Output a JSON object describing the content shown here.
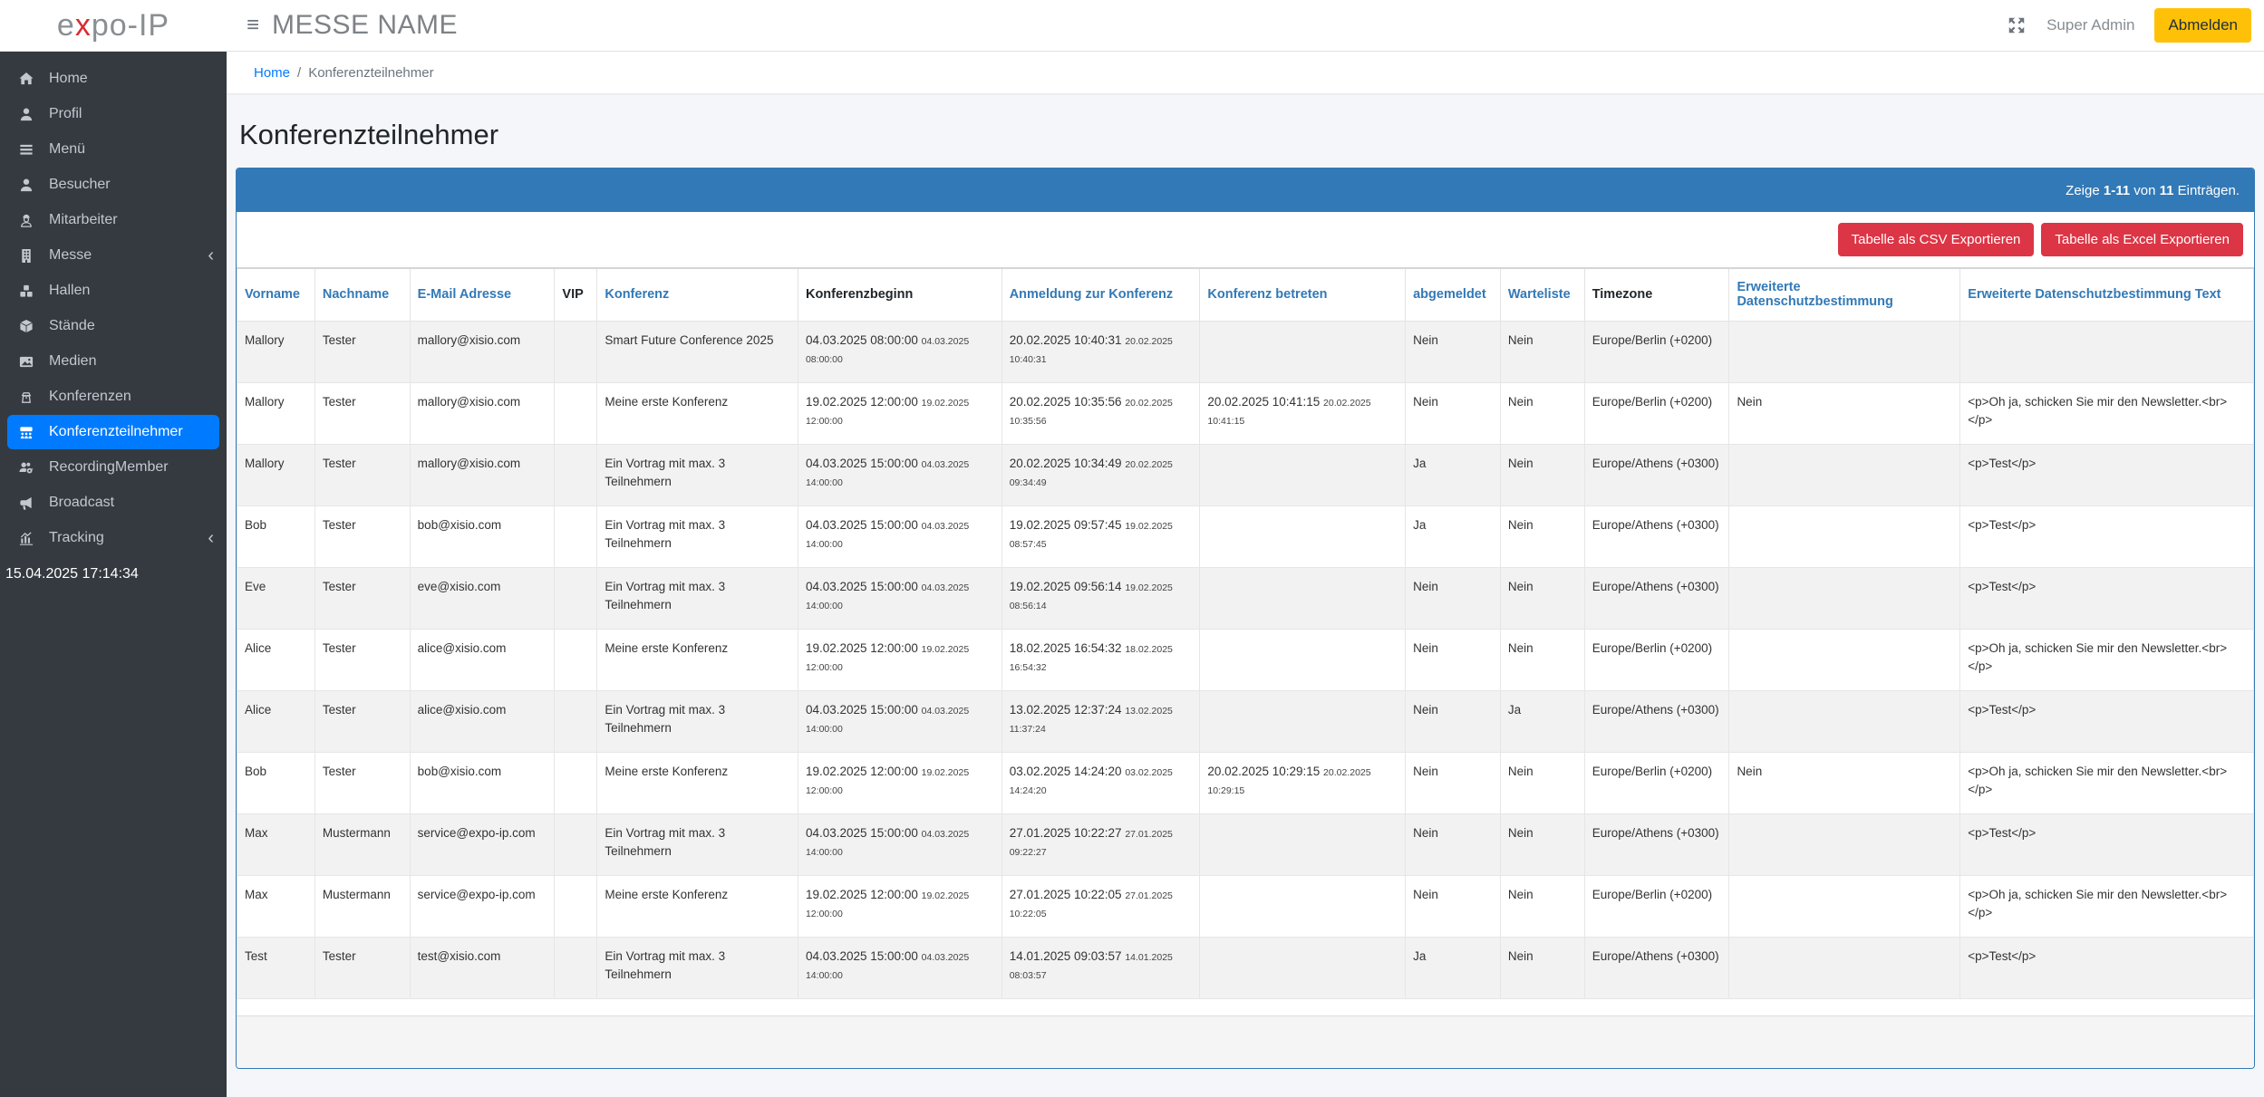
{
  "topbar": {
    "logo": {
      "pre": "e",
      "x": "x",
      "post": "po-IP"
    },
    "hamburger": "≡",
    "messe_name": "MESSE NAME",
    "username": "Super Admin",
    "logout_label": "Abmelden"
  },
  "sidebar": {
    "items": [
      {
        "label": "Home",
        "icon": "home-icon",
        "active": false,
        "chevron": false
      },
      {
        "label": "Profil",
        "icon": "user-icon",
        "active": false,
        "chevron": false
      },
      {
        "label": "Menü",
        "icon": "menu-icon",
        "active": false,
        "chevron": false
      },
      {
        "label": "Besucher",
        "icon": "visitor-icon",
        "active": false,
        "chevron": false
      },
      {
        "label": "Mitarbeiter",
        "icon": "worker-icon",
        "active": false,
        "chevron": false
      },
      {
        "label": "Messe",
        "icon": "building-icon",
        "active": false,
        "chevron": true
      },
      {
        "label": "Hallen",
        "icon": "cubes-icon",
        "active": false,
        "chevron": false
      },
      {
        "label": "Stände",
        "icon": "box-icon",
        "active": false,
        "chevron": false
      },
      {
        "label": "Medien",
        "icon": "image-icon",
        "active": false,
        "chevron": false
      },
      {
        "label": "Konferenzen",
        "icon": "podium-icon",
        "active": false,
        "chevron": false
      },
      {
        "label": "Konferenzteilnehmer",
        "icon": "audience-icon",
        "active": true,
        "chevron": false
      },
      {
        "label": "RecordingMember",
        "icon": "users-gear-icon",
        "active": false,
        "chevron": false
      },
      {
        "label": "Broadcast",
        "icon": "megaphone-icon",
        "active": false,
        "chevron": false
      },
      {
        "label": "Tracking",
        "icon": "chart-icon",
        "active": false,
        "chevron": true
      }
    ],
    "timestamp": "15.04.2025 17:14:34"
  },
  "breadcrumb": {
    "home": "Home",
    "separator": "/",
    "current": "Konferenzteilnehmer"
  },
  "page_title": "Konferenzteilnehmer",
  "summary": {
    "prefix": "Zeige ",
    "range": "1-11",
    "middle": " von ",
    "total": "11",
    "suffix": " Einträgen."
  },
  "toolbar": {
    "export_csv_label": "Tabelle als CSV Exportieren",
    "export_excel_label": "Tabelle als Excel Exportieren"
  },
  "table": {
    "columns": [
      {
        "key": "vorname",
        "label": "Vorname",
        "sortable": true
      },
      {
        "key": "nachname",
        "label": "Nachname",
        "sortable": true
      },
      {
        "key": "email",
        "label": "E-Mail Adresse",
        "sortable": true
      },
      {
        "key": "vip",
        "label": "VIP",
        "sortable": false
      },
      {
        "key": "konferenz",
        "label": "Konferenz",
        "sortable": true
      },
      {
        "key": "beginn",
        "label": "Konferenzbeginn",
        "sortable": false
      },
      {
        "key": "anmeldung",
        "label": "Anmeldung zur Konferenz",
        "sortable": true
      },
      {
        "key": "betreten",
        "label": "Konferenz betreten",
        "sortable": true
      },
      {
        "key": "abgemeldet",
        "label": "abgemeldet",
        "sortable": true
      },
      {
        "key": "warteliste",
        "label": "Warteliste",
        "sortable": true
      },
      {
        "key": "timezone",
        "label": "Timezone",
        "sortable": false
      },
      {
        "key": "dsb",
        "label": "Erweiterte Datenschutzbestimmung",
        "sortable": true
      },
      {
        "key": "dsbtext",
        "label": "Erweiterte Datenschutzbestimmung Text",
        "sortable": true
      }
    ],
    "rows": [
      {
        "vorname": "Mallory",
        "nachname": "Tester",
        "email": "mallory@xisio.com",
        "vip": "",
        "konferenz": "Smart Future Conference 2025",
        "beginn_main": "04.03.2025 08:00:00",
        "beginn_small": "04.03.2025 08:00:00",
        "anmeldung_main": "20.02.2025 10:40:31",
        "anmeldung_small": "20.02.2025 10:40:31",
        "betreten_main": "",
        "betreten_small": "",
        "abgemeldet": "Nein",
        "warteliste": "Nein",
        "timezone": "Europe/Berlin (+0200)",
        "dsb": "",
        "dsbtext": ""
      },
      {
        "vorname": "Mallory",
        "nachname": "Tester",
        "email": "mallory@xisio.com",
        "vip": "",
        "konferenz": "Meine erste Konferenz",
        "beginn_main": "19.02.2025 12:00:00",
        "beginn_small": "19.02.2025 12:00:00",
        "anmeldung_main": "20.02.2025 10:35:56",
        "anmeldung_small": "20.02.2025 10:35:56",
        "betreten_main": "20.02.2025 10:41:15",
        "betreten_small": "20.02.2025 10:41:15",
        "abgemeldet": "Nein",
        "warteliste": "Nein",
        "timezone": "Europe/Berlin (+0200)",
        "dsb": "Nein",
        "dsbtext": "<p>Oh ja, schicken Sie mir den Newsletter.<br></p>"
      },
      {
        "vorname": "Mallory",
        "nachname": "Tester",
        "email": "mallory@xisio.com",
        "vip": "",
        "konferenz": "Ein Vortrag mit max. 3 Teilnehmern",
        "beginn_main": "04.03.2025 15:00:00",
        "beginn_small": "04.03.2025 14:00:00",
        "anmeldung_main": "20.02.2025 10:34:49",
        "anmeldung_small": "20.02.2025 09:34:49",
        "betreten_main": "",
        "betreten_small": "",
        "abgemeldet": "Ja",
        "warteliste": "Nein",
        "timezone": "Europe/Athens (+0300)",
        "dsb": "",
        "dsbtext": "<p>Test</p>"
      },
      {
        "vorname": "Bob",
        "nachname": "Tester",
        "email": "bob@xisio.com",
        "vip": "",
        "konferenz": "Ein Vortrag mit max. 3 Teilnehmern",
        "beginn_main": "04.03.2025 15:00:00",
        "beginn_small": "04.03.2025 14:00:00",
        "anmeldung_main": "19.02.2025 09:57:45",
        "anmeldung_small": "19.02.2025 08:57:45",
        "betreten_main": "",
        "betreten_small": "",
        "abgemeldet": "Ja",
        "warteliste": "Nein",
        "timezone": "Europe/Athens (+0300)",
        "dsb": "",
        "dsbtext": "<p>Test</p>"
      },
      {
        "vorname": "Eve",
        "nachname": "Tester",
        "email": "eve@xisio.com",
        "vip": "",
        "konferenz": "Ein Vortrag mit max. 3 Teilnehmern",
        "beginn_main": "04.03.2025 15:00:00",
        "beginn_small": "04.03.2025 14:00:00",
        "anmeldung_main": "19.02.2025 09:56:14",
        "anmeldung_small": "19.02.2025 08:56:14",
        "betreten_main": "",
        "betreten_small": "",
        "abgemeldet": "Nein",
        "warteliste": "Nein",
        "timezone": "Europe/Athens (+0300)",
        "dsb": "",
        "dsbtext": "<p>Test</p>"
      },
      {
        "vorname": "Alice",
        "nachname": "Tester",
        "email": "alice@xisio.com",
        "vip": "",
        "konferenz": "Meine erste Konferenz",
        "beginn_main": "19.02.2025 12:00:00",
        "beginn_small": "19.02.2025 12:00:00",
        "anmeldung_main": "18.02.2025 16:54:32",
        "anmeldung_small": "18.02.2025 16:54:32",
        "betreten_main": "",
        "betreten_small": "",
        "abgemeldet": "Nein",
        "warteliste": "Nein",
        "timezone": "Europe/Berlin (+0200)",
        "dsb": "",
        "dsbtext": "<p>Oh ja, schicken Sie mir den Newsletter.<br></p>"
      },
      {
        "vorname": "Alice",
        "nachname": "Tester",
        "email": "alice@xisio.com",
        "vip": "",
        "konferenz": "Ein Vortrag mit max. 3 Teilnehmern",
        "beginn_main": "04.03.2025 15:00:00",
        "beginn_small": "04.03.2025 14:00:00",
        "anmeldung_main": "13.02.2025 12:37:24",
        "anmeldung_small": "13.02.2025 11:37:24",
        "betreten_main": "",
        "betreten_small": "",
        "abgemeldet": "Nein",
        "warteliste": "Ja",
        "timezone": "Europe/Athens (+0300)",
        "dsb": "",
        "dsbtext": "<p>Test</p>"
      },
      {
        "vorname": "Bob",
        "nachname": "Tester",
        "email": "bob@xisio.com",
        "vip": "",
        "konferenz": "Meine erste Konferenz",
        "beginn_main": "19.02.2025 12:00:00",
        "beginn_small": "19.02.2025 12:00:00",
        "anmeldung_main": "03.02.2025 14:24:20",
        "anmeldung_small": "03.02.2025 14:24:20",
        "betreten_main": "20.02.2025 10:29:15",
        "betreten_small": "20.02.2025 10:29:15",
        "abgemeldet": "Nein",
        "warteliste": "Nein",
        "timezone": "Europe/Berlin (+0200)",
        "dsb": "Nein",
        "dsbtext": "<p>Oh ja, schicken Sie mir den Newsletter.<br></p>"
      },
      {
        "vorname": "Max",
        "nachname": "Mustermann",
        "email": "service@expo-ip.com",
        "vip": "",
        "konferenz": "Ein Vortrag mit max. 3 Teilnehmern",
        "beginn_main": "04.03.2025 15:00:00",
        "beginn_small": "04.03.2025 14:00:00",
        "anmeldung_main": "27.01.2025 10:22:27",
        "anmeldung_small": "27.01.2025 09:22:27",
        "betreten_main": "",
        "betreten_small": "",
        "abgemeldet": "Nein",
        "warteliste": "Nein",
        "timezone": "Europe/Athens (+0300)",
        "dsb": "",
        "dsbtext": "<p>Test</p>"
      },
      {
        "vorname": "Max",
        "nachname": "Mustermann",
        "email": "service@expo-ip.com",
        "vip": "",
        "konferenz": "Meine erste Konferenz",
        "beginn_main": "19.02.2025 12:00:00",
        "beginn_small": "19.02.2025 12:00:00",
        "anmeldung_main": "27.01.2025 10:22:05",
        "anmeldung_small": "27.01.2025 10:22:05",
        "betreten_main": "",
        "betreten_small": "",
        "abgemeldet": "Nein",
        "warteliste": "Nein",
        "timezone": "Europe/Berlin (+0200)",
        "dsb": "",
        "dsbtext": "<p>Oh ja, schicken Sie mir den Newsletter.<br></p>"
      },
      {
        "vorname": "Test",
        "nachname": "Tester",
        "email": "test@xisio.com",
        "vip": "",
        "konferenz": "Ein Vortrag mit max. 3 Teilnehmern",
        "beginn_main": "04.03.2025 15:00:00",
        "beginn_small": "04.03.2025 14:00:00",
        "anmeldung_main": "14.01.2025 09:03:57",
        "anmeldung_small": "14.01.2025 08:03:57",
        "betreten_main": "",
        "betreten_small": "",
        "abgemeldet": "Ja",
        "warteliste": "Nein",
        "timezone": "Europe/Athens (+0300)",
        "dsb": "",
        "dsbtext": "<p>Test</p>"
      }
    ]
  }
}
